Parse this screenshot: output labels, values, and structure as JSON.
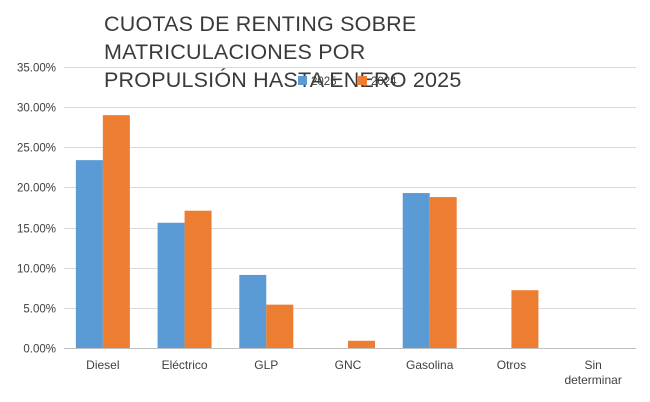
{
  "chart_data": {
    "type": "bar",
    "title_lines": [
      "CUOTAS DE RENTING SOBRE MATRICULACIONES POR",
      "PROPULSIÓN HASTA ENERO 2025"
    ],
    "categories": [
      [
        "Diesel"
      ],
      [
        "Eléctrico"
      ],
      [
        "GLP"
      ],
      [
        "GNC"
      ],
      [
        "Gasolina"
      ],
      [
        "Otros"
      ],
      [
        "Sin",
        "determinar"
      ]
    ],
    "series": [
      {
        "name": "2025",
        "color": "#5b9bd5",
        "values": [
          23.4,
          15.6,
          9.1,
          0,
          19.3,
          0,
          0
        ]
      },
      {
        "name": "2024",
        "color": "#ed7d31",
        "values": [
          29.0,
          17.1,
          5.4,
          0.9,
          18.8,
          7.2,
          0
        ]
      }
    ],
    "ylim": [
      0,
      35
    ],
    "yticks": [
      "0.00%",
      "5.00%",
      "10.00%",
      "15.00%",
      "20.00%",
      "25.00%",
      "30.00%",
      "35.00%"
    ],
    "ytick_values": [
      0,
      5,
      10,
      15,
      20,
      25,
      30,
      35
    ],
    "grid": true,
    "legend_position": "top-center"
  }
}
